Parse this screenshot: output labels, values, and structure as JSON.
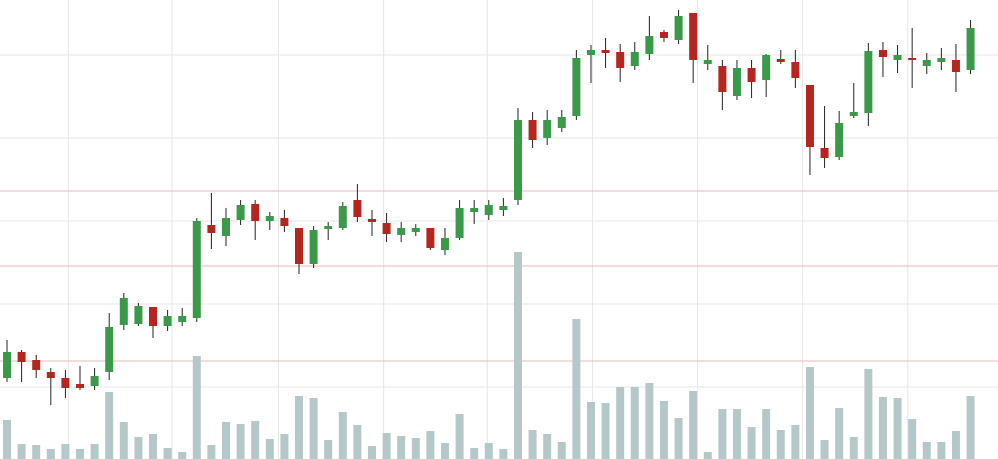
{
  "chart_data": {
    "type": "candlestick",
    "xlim": [
      -0.48,
      67.88
    ],
    "xticks": [
      4.2,
      11.3,
      18.6,
      25.8,
      32.9,
      40.1,
      47.3,
      54.5,
      61.7
    ],
    "ylim": [
      0,
      459
    ],
    "yticks": [
      72,
      155,
      238,
      321,
      404
    ],
    "levels": [
      98,
      193,
      268
    ],
    "y2lim": [
      0,
      459
    ],
    "grid": true,
    "up_color": "#3a9a4a",
    "down_color": "#b5271e",
    "volume_color": "#b5c8c9",
    "grid_color": "#e6e6e6",
    "level_color": "#e8b9b9",
    "open": [
      81,
      107,
      99,
      87,
      81,
      75,
      73,
      87,
      134,
      135,
      152,
      133,
      137,
      141,
      234,
      223,
      239,
      255,
      238,
      241,
      231,
      195,
      230,
      231,
      259,
      240,
      236,
      224,
      227,
      231,
      209,
      221,
      247,
      244,
      249,
      259,
      339,
      321,
      331,
      343,
      404,
      409,
      407,
      393,
      405,
      427,
      419,
      446,
      395,
      393,
      363,
      391,
      379,
      400,
      397,
      374,
      311,
      302,
      343,
      346,
      409,
      399,
      401,
      393,
      397,
      399,
      389
    ],
    "high": [
      119,
      109,
      104,
      91,
      89,
      93,
      91,
      146,
      166,
      156,
      152,
      149,
      151,
      241,
      266,
      251,
      259,
      259,
      247,
      249,
      231,
      233,
      237,
      257,
      275,
      249,
      246,
      237,
      235,
      231,
      231,
      259,
      259,
      259,
      261,
      351,
      347,
      349,
      349,
      409,
      414,
      421,
      415,
      417,
      443,
      429,
      449,
      446,
      414,
      399,
      399,
      399,
      405,
      409,
      409,
      374,
      353,
      348,
      376,
      416,
      417,
      414,
      431,
      406,
      411,
      415,
      439
    ],
    "low": [
      77,
      77,
      81,
      54,
      61,
      69,
      69,
      79,
      129,
      133,
      121,
      128,
      133,
      137,
      210,
      213,
      234,
      219,
      229,
      227,
      185,
      191,
      219,
      229,
      237,
      223,
      217,
      217,
      223,
      209,
      204,
      219,
      235,
      239,
      243,
      254,
      311,
      314,
      327,
      339,
      376,
      391,
      377,
      389,
      399,
      417,
      415,
      376,
      389,
      349,
      359,
      361,
      362,
      395,
      371,
      284,
      291,
      299,
      341,
      333,
      382,
      386,
      371,
      385,
      389,
      367,
      385
    ],
    "close": [
      107,
      97,
      89,
      81,
      71,
      71,
      83,
      132,
      161,
      153,
      133,
      143,
      143,
      238,
      226,
      241,
      254,
      238,
      243,
      233,
      195,
      229,
      233,
      253,
      242,
      237,
      225,
      231,
      231,
      211,
      221,
      251,
      251,
      254,
      253,
      339,
      319,
      339,
      342,
      401,
      409,
      406,
      391,
      407,
      423,
      421,
      443,
      399,
      399,
      367,
      391,
      377,
      404,
      397,
      381,
      312,
      301,
      336,
      347,
      408,
      402,
      404,
      399,
      399,
      401,
      387,
      431
    ],
    "volume": [
      39,
      15,
      14,
      10,
      15,
      10,
      15,
      67,
      37,
      22,
      25,
      11,
      7,
      103,
      14,
      37,
      35,
      38,
      20,
      25,
      63,
      61,
      19,
      47,
      34,
      13,
      26,
      23,
      21,
      28,
      16,
      45,
      11,
      16,
      10,
      207,
      29,
      25,
      17,
      140,
      57,
      56,
      72,
      72,
      76,
      58,
      41,
      68,
      7,
      50,
      50,
      32,
      50,
      29,
      34,
      92,
      19,
      51,
      22,
      90,
      62,
      61,
      40,
      17,
      17,
      28,
      63
    ]
  }
}
